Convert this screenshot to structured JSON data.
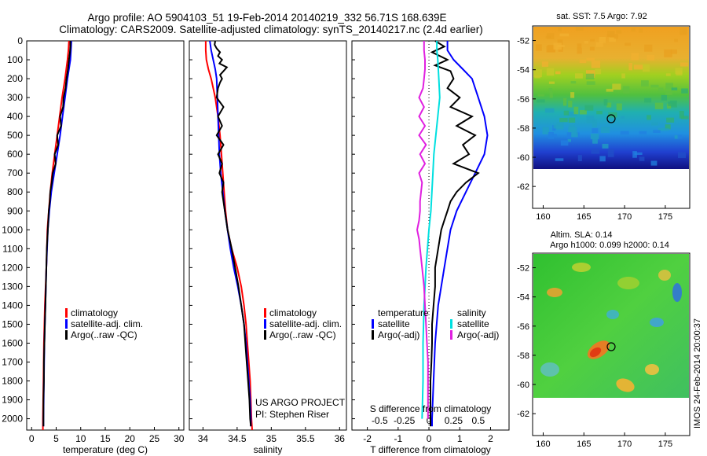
{
  "header": {
    "line1": "Argo profile: AO 5904103_51 19-Feb-2014 20140219_332 56.71S 168.639E",
    "line2": "Climatology: CARS2009. Satellite-adjusted climatology: synTS_20140217.nc (2.4d earlier)"
  },
  "colors": {
    "climatology": "#ff0000",
    "satellite": "#0000ff",
    "argo": "#000000",
    "sat_salinity": "#00e0e0",
    "argo_salinity": "#e020e0"
  },
  "depth_axis": {
    "ticks": [
      0,
      100,
      200,
      300,
      400,
      500,
      600,
      700,
      800,
      900,
      1000,
      1100,
      1200,
      1300,
      1400,
      1500,
      1600,
      1700,
      1800,
      1900,
      2000
    ],
    "range": [
      0,
      2060
    ],
    "inverted": true
  },
  "legends": {
    "temp": [
      "climatology",
      "satellite-adj. clim.",
      "Argo(..raw -QC)"
    ],
    "sal": [
      "climatology",
      "satellite-adj. clim.",
      "Argo(..raw -QC)"
    ],
    "diff_headers": [
      "temperature",
      "salinity"
    ],
    "diff_temp": [
      "satellite",
      "Argo(-adj)"
    ],
    "diff_sal": [
      "satellite",
      "Argo(-adj)"
    ]
  },
  "annotations": {
    "project": "US ARGO PROJECT",
    "pi": "PI: Stephen Riser",
    "imos": "IMOS 24-Feb-2014 20:00:37"
  },
  "maps": [
    {
      "title": "sat. SST: 7.5 Argo: 7.92",
      "lat_ticks": [
        -52,
        -54,
        -56,
        -58,
        -60,
        -62
      ],
      "lon_ticks": [
        160,
        165,
        170,
        175
      ],
      "data_lat_range": [
        -51,
        -60
      ],
      "argo_position": {
        "lon": 168.639,
        "lat": -56.71
      }
    },
    {
      "title_line1": "Altim. SLA: 0.14",
      "title_line2": "Argo h1000: 0.099 h2000: 0.14",
      "lat_ticks": [
        -52,
        -54,
        -56,
        -58,
        -60,
        -62
      ],
      "lon_ticks": [
        160,
        165,
        170,
        175
      ],
      "data_lat_range": [
        -51,
        -60
      ],
      "argo_position": {
        "lon": 168.639,
        "lat": -56.71
      }
    }
  ],
  "chart_data": [
    {
      "type": "line",
      "xlabel": "temperature (deg C)",
      "ylabel": "",
      "xlim": [
        -1,
        31
      ],
      "ylim": [
        2060,
        0
      ],
      "xticks": [
        0,
        5,
        10,
        15,
        20,
        25,
        30
      ],
      "series": [
        {
          "name": "climatology",
          "depth": [
            0,
            50,
            100,
            200,
            300,
            400,
            500,
            600,
            700,
            800,
            900,
            1000,
            1200,
            1400,
            1600,
            1800,
            2000,
            2060
          ],
          "values": [
            7.6,
            7.5,
            7.3,
            6.8,
            6.2,
            5.7,
            5.2,
            4.7,
            4.2,
            3.8,
            3.5,
            3.2,
            3.0,
            2.7,
            2.5,
            2.4,
            2.3,
            2.3
          ]
        },
        {
          "name": "satellite-adj. clim.",
          "depth": [
            0,
            50,
            100,
            200,
            300,
            400,
            500,
            600,
            700,
            800,
            900,
            1000,
            1200,
            1400,
            1600,
            1800,
            2000,
            2040
          ],
          "values": [
            8.1,
            8.0,
            7.9,
            7.3,
            6.8,
            6.3,
            5.8,
            5.2,
            4.6,
            4.0,
            3.6,
            3.3,
            3.0,
            2.8,
            2.6,
            2.5,
            2.4,
            2.4
          ]
        },
        {
          "name": "Argo(..raw -QC)",
          "depth": [
            0,
            30,
            60,
            100,
            150,
            200,
            250,
            300,
            350,
            400,
            450,
            500,
            550,
            600,
            650,
            700,
            750,
            800,
            850,
            900,
            950,
            1000,
            1100,
            1200,
            1300,
            1400,
            1500,
            1600,
            1700,
            1800,
            1900,
            2000,
            2040
          ],
          "values": [
            7.9,
            7.9,
            7.8,
            7.6,
            7.4,
            7.1,
            6.9,
            6.5,
            6.4,
            5.8,
            6.0,
            5.2,
            5.4,
            4.7,
            4.9,
            4.3,
            4.1,
            3.8,
            3.7,
            3.5,
            3.4,
            3.3,
            3.1,
            3.0,
            2.9,
            2.8,
            2.7,
            2.6,
            2.5,
            2.5,
            2.4,
            2.4,
            2.4
          ]
        }
      ]
    },
    {
      "type": "line",
      "xlabel": "salinity",
      "ylabel": "",
      "xlim": [
        33.8,
        36.1
      ],
      "ylim": [
        2060,
        0
      ],
      "xticks": [
        34,
        34.5,
        35,
        35.5,
        36
      ],
      "series": [
        {
          "name": "climatology",
          "depth": [
            0,
            50,
            100,
            150,
            200,
            300,
            400,
            500,
            600,
            700,
            800,
            900,
            1000,
            1100,
            1200,
            1300,
            1400,
            1500,
            1600,
            1700,
            1800,
            1900,
            2000,
            2060
          ],
          "values": [
            34.04,
            34.04,
            34.05,
            34.08,
            34.12,
            34.18,
            34.22,
            34.25,
            34.27,
            34.29,
            34.31,
            34.33,
            34.36,
            34.42,
            34.5,
            34.56,
            34.6,
            34.63,
            34.65,
            34.67,
            34.69,
            34.7,
            34.71,
            34.72
          ]
        },
        {
          "name": "satellite-adj. clim.",
          "depth": [
            0,
            50,
            100,
            150,
            200,
            300,
            400,
            500,
            600,
            700,
            800,
            900,
            1000,
            1100,
            1200,
            1300,
            1400,
            1500,
            1600,
            1700,
            1800,
            1900,
            2000,
            2040
          ],
          "values": [
            34.1,
            34.12,
            34.15,
            34.18,
            34.2,
            34.21,
            34.22,
            34.23,
            34.24,
            34.26,
            34.29,
            34.32,
            34.36,
            34.4,
            34.45,
            34.51,
            34.56,
            34.6,
            34.63,
            34.65,
            34.67,
            34.69,
            34.7,
            34.7
          ]
        },
        {
          "name": "Argo(..raw -QC)",
          "depth": [
            0,
            20,
            40,
            60,
            80,
            100,
            120,
            140,
            160,
            180,
            200,
            220,
            250,
            300,
            350,
            400,
            450,
            500,
            550,
            600,
            650,
            700,
            750,
            800,
            900,
            1000,
            1100,
            1200,
            1300,
            1400,
            1500,
            1600,
            1700,
            1800,
            1900,
            2000,
            2040
          ],
          "values": [
            34.18,
            34.17,
            34.2,
            34.25,
            34.22,
            34.28,
            34.24,
            34.35,
            34.3,
            34.25,
            34.28,
            34.25,
            34.22,
            34.2,
            34.3,
            34.22,
            34.28,
            34.2,
            34.3,
            34.22,
            34.28,
            34.24,
            34.3,
            34.28,
            34.32,
            34.36,
            34.42,
            34.47,
            34.52,
            34.56,
            34.6,
            34.62,
            34.64,
            34.66,
            34.68,
            34.69,
            34.7
          ]
        }
      ]
    },
    {
      "type": "line",
      "xlabel": "T difference from climatology",
      "xlabel_top": "S difference from climatology",
      "ylabel": "",
      "xlim": [
        -2.5,
        2.6
      ],
      "ylim": [
        2060,
        0
      ],
      "xticks": [
        -2,
        -1,
        0,
        1,
        2
      ],
      "xticks_top": [
        -0.5,
        -0.25,
        0,
        0.25,
        0.5
      ],
      "series": [
        {
          "name": "temperature satellite",
          "depth": [
            0,
            50,
            100,
            150,
            200,
            300,
            400,
            500,
            600,
            700,
            800,
            900,
            1000,
            1200,
            1400,
            1600,
            1800,
            2000,
            2040
          ],
          "values": [
            0.6,
            0.6,
            0.8,
            1.1,
            1.4,
            1.6,
            1.8,
            1.9,
            1.8,
            1.5,
            1.2,
            0.9,
            0.7,
            0.5,
            0.3,
            0.2,
            0.15,
            0.1,
            0.1
          ]
        },
        {
          "name": "temperature Argo(-adj)",
          "depth": [
            0,
            30,
            60,
            100,
            130,
            160,
            200,
            250,
            300,
            350,
            400,
            450,
            500,
            550,
            600,
            650,
            700,
            750,
            800,
            850,
            900,
            950,
            1000,
            1100,
            1200,
            1300,
            1400,
            1500,
            1600,
            1700,
            1800,
            1900,
            2000,
            2040
          ],
          "values": [
            0.2,
            0.5,
            0.1,
            0.6,
            0.2,
            0.7,
            0.8,
            0.6,
            1.0,
            0.7,
            1.4,
            0.9,
            1.5,
            1.1,
            1.3,
            0.8,
            1.6,
            1.2,
            0.9,
            0.7,
            0.6,
            0.5,
            0.4,
            0.3,
            0.2,
            0.2,
            0.15,
            0.1,
            0.1,
            0.08,
            0.05,
            0.05,
            0.05,
            0.05
          ]
        },
        {
          "name": "salinity satellite",
          "depth": [
            0,
            50,
            100,
            200,
            300,
            400,
            500,
            600,
            700,
            800,
            900,
            1000,
            1200,
            1400,
            1600,
            1800,
            2000
          ],
          "values": [
            0.08,
            0.08,
            0.09,
            0.1,
            0.11,
            0.09,
            0.07,
            0.05,
            0.04,
            0.03,
            0.02,
            0.0,
            -0.03,
            -0.05,
            -0.06,
            -0.06,
            -0.07
          ]
        },
        {
          "name": "salinity Argo(-adj)",
          "depth": [
            0,
            50,
            100,
            150,
            200,
            250,
            300,
            350,
            400,
            450,
            500,
            550,
            600,
            650,
            700,
            750,
            800,
            850,
            900,
            950,
            1000,
            1050,
            1100,
            1200,
            1300,
            1400,
            1500,
            1600,
            1700,
            1800,
            1900,
            2000
          ],
          "values": [
            -0.05,
            -0.05,
            -0.04,
            -0.04,
            -0.05,
            -0.06,
            -0.1,
            -0.05,
            -0.1,
            -0.04,
            -0.1,
            -0.03,
            -0.09,
            -0.04,
            -0.1,
            -0.07,
            -0.08,
            -0.09,
            -0.09,
            -0.1,
            -0.12,
            -0.1,
            -0.09,
            -0.07,
            -0.05,
            -0.04,
            -0.03,
            -0.02,
            -0.01,
            -0.01,
            -0.01,
            -0.01
          ]
        }
      ]
    }
  ]
}
